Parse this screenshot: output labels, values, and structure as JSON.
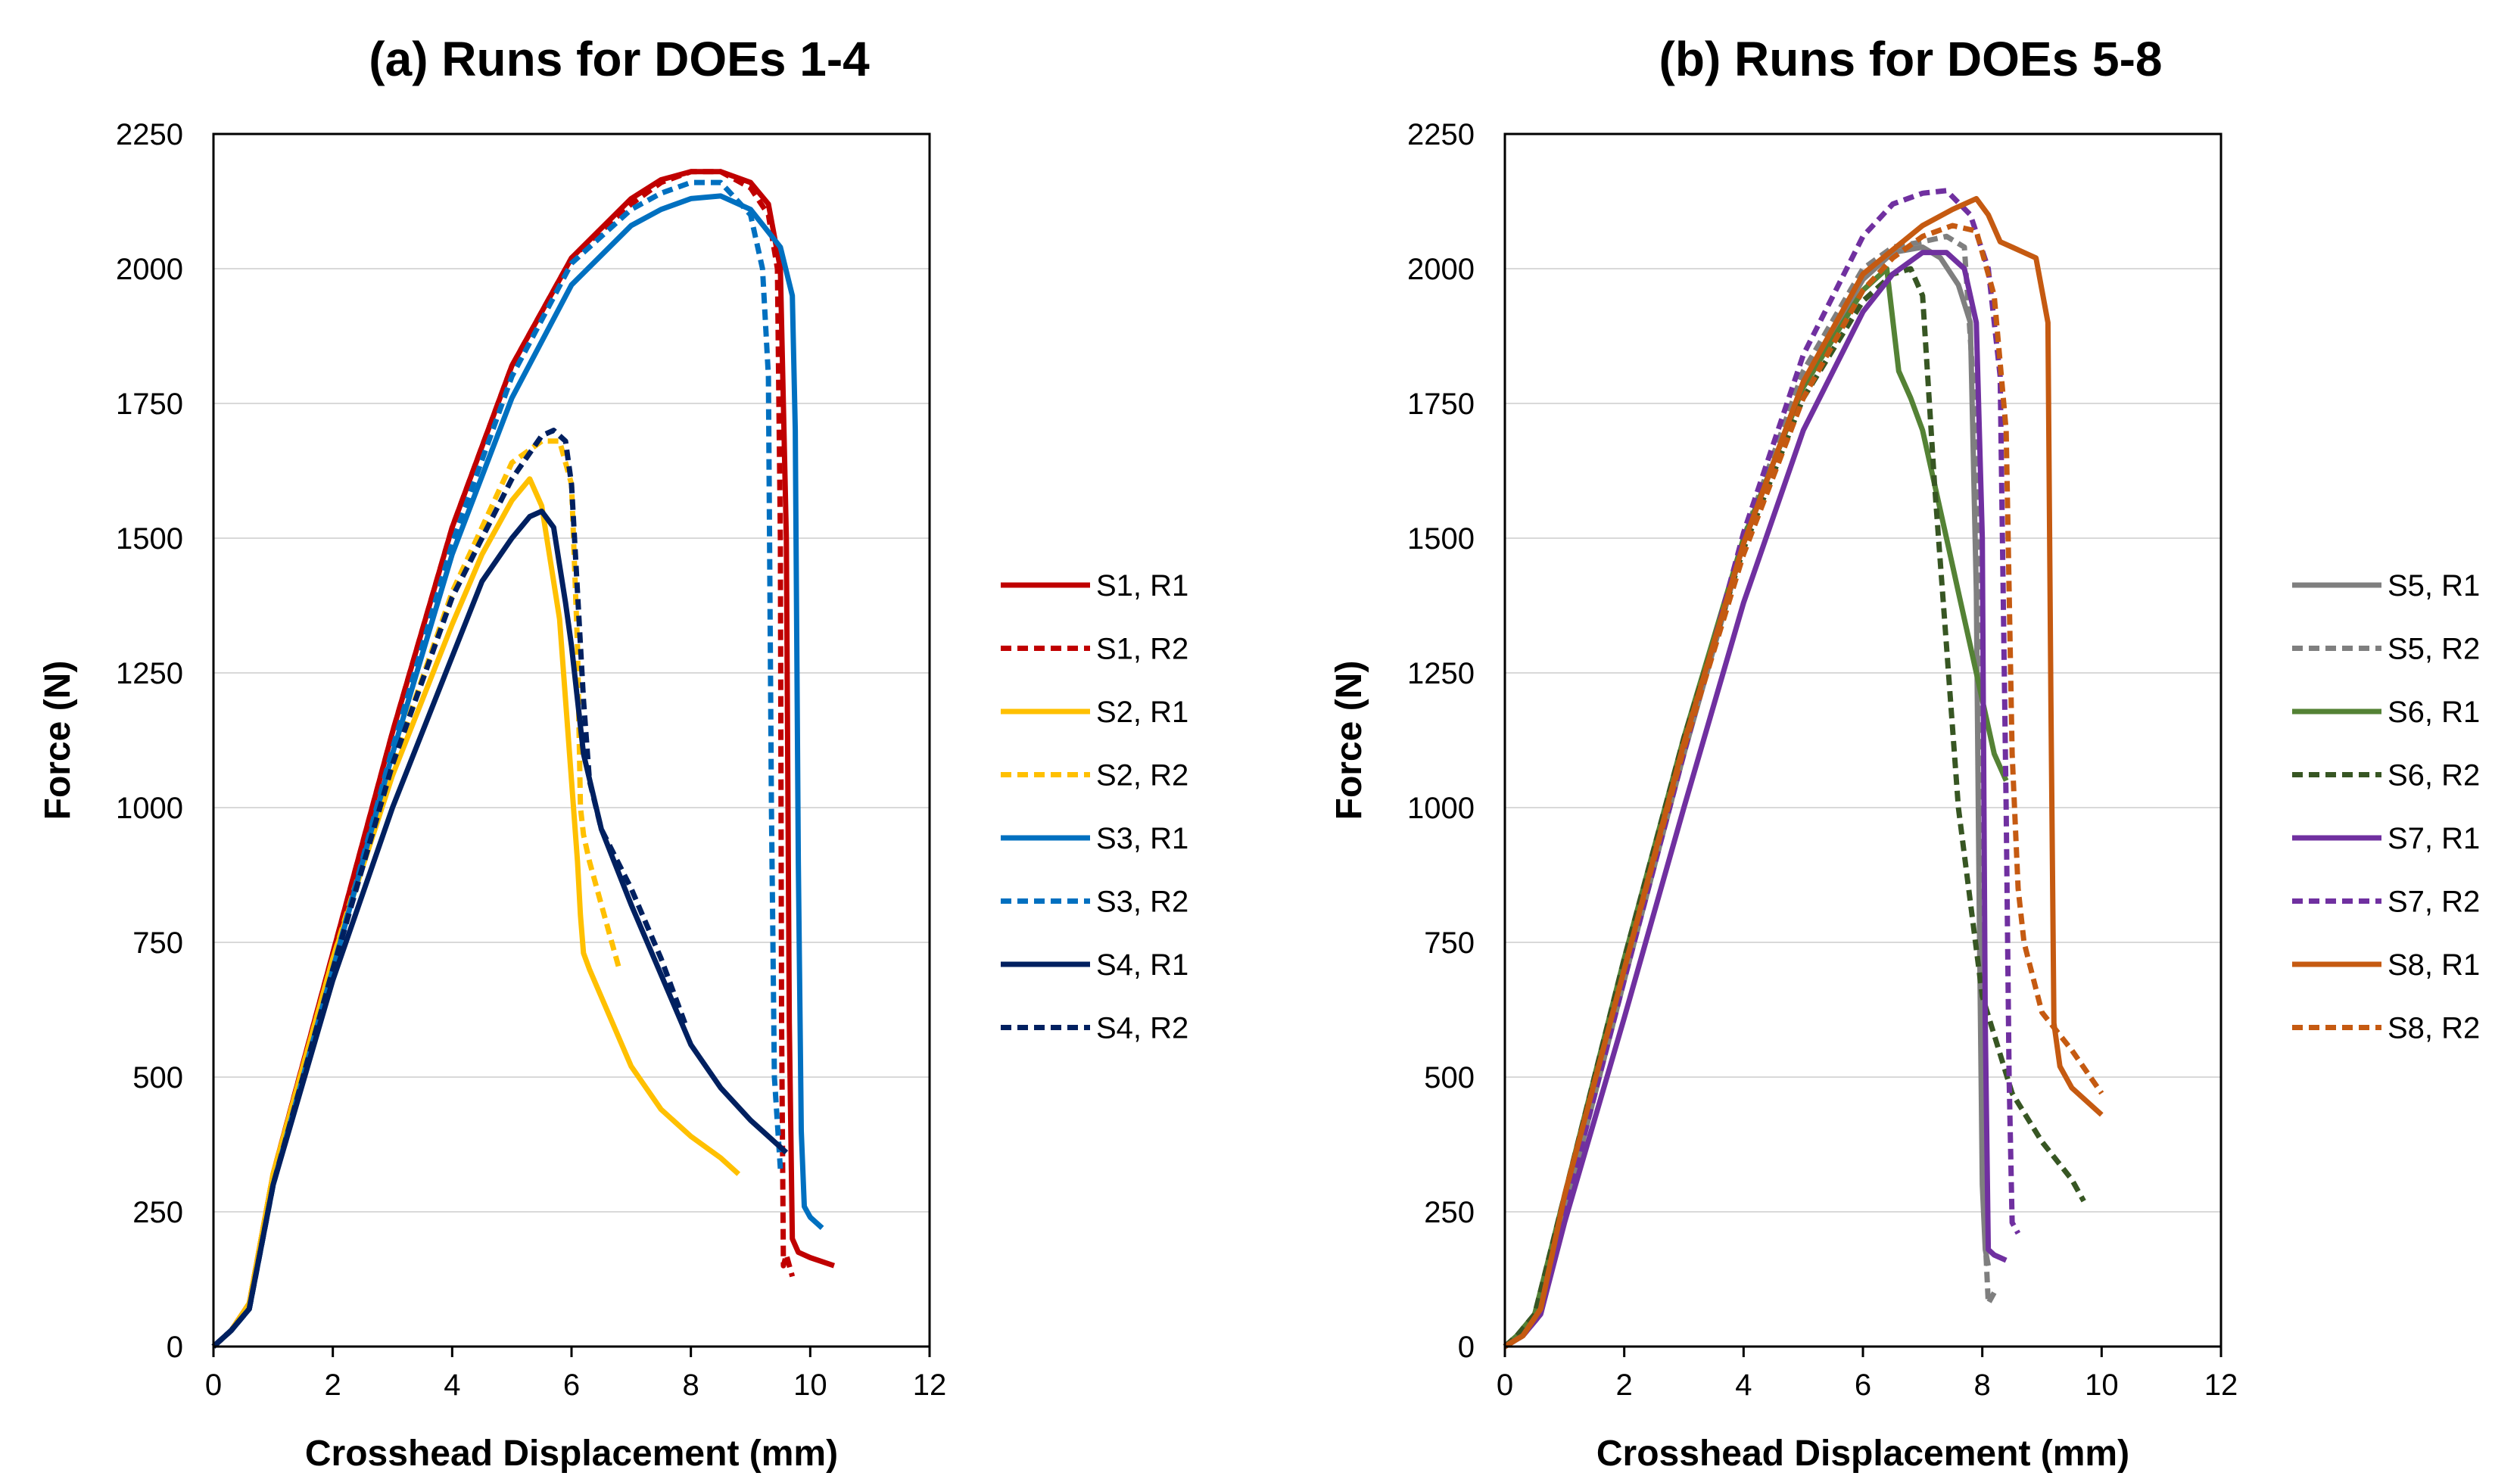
{
  "chart_data": [
    {
      "type": "line",
      "title": "(a) Runs for DOEs 1-4",
      "xlabel": "Crosshead Displacement (mm)",
      "ylabel": "Force (N)",
      "xlim": [
        0,
        12
      ],
      "ylim": [
        0,
        2250
      ],
      "xticks": [
        0,
        2,
        4,
        6,
        8,
        10,
        12
      ],
      "yticks": [
        0,
        250,
        500,
        750,
        1000,
        1250,
        1500,
        1750,
        2000,
        2250
      ],
      "grid": "horizontal",
      "legend_position": "right",
      "series": [
        {
          "name": "S1, R1",
          "color": "#c00000",
          "dash": "solid",
          "x": [
            0,
            0.3,
            0.6,
            1,
            2,
            3,
            4,
            5,
            6,
            7,
            7.5,
            8,
            8.5,
            9,
            9.3,
            9.5,
            9.6,
            9.65,
            9.7,
            9.8,
            10,
            10.4
          ],
          "y": [
            0,
            30,
            80,
            320,
            730,
            1140,
            1520,
            1820,
            2020,
            2130,
            2165,
            2180,
            2180,
            2160,
            2120,
            2000,
            1500,
            600,
            200,
            175,
            165,
            150
          ]
        },
        {
          "name": "S1, R2",
          "color": "#c00000",
          "dash": "dashed",
          "x": [
            0,
            0.3,
            0.6,
            1,
            2,
            3,
            4,
            5,
            6,
            7,
            7.5,
            8,
            8.5,
            9,
            9.3,
            9.45,
            9.5,
            9.52,
            9.55,
            9.6,
            9.7
          ],
          "y": [
            0,
            30,
            80,
            320,
            730,
            1140,
            1520,
            1820,
            2020,
            2120,
            2160,
            2180,
            2180,
            2150,
            2100,
            2000,
            1500,
            600,
            150,
            170,
            130
          ]
        },
        {
          "name": "S2, R1",
          "color": "#ffc000",
          "dash": "solid",
          "x": [
            0,
            0.3,
            0.6,
            1,
            2,
            3,
            4,
            4.5,
            5,
            5.3,
            5.5,
            5.8,
            6,
            6.1,
            6.15,
            6.2,
            6.3,
            7,
            7.5,
            8,
            8.5,
            8.8
          ],
          "y": [
            0,
            30,
            80,
            320,
            720,
            1060,
            1340,
            1470,
            1570,
            1610,
            1560,
            1350,
            1050,
            900,
            800,
            730,
            700,
            520,
            440,
            390,
            350,
            320
          ]
        },
        {
          "name": "S2, R2",
          "color": "#ffc000",
          "dash": "dashed",
          "x": [
            0,
            0.3,
            0.6,
            1,
            2,
            3,
            4,
            5,
            5.5,
            5.8,
            6,
            6.1,
            6.15,
            6.2,
            6.3,
            6.5,
            6.8
          ],
          "y": [
            0,
            30,
            80,
            320,
            720,
            1080,
            1400,
            1640,
            1680,
            1680,
            1600,
            1300,
            1000,
            950,
            900,
            820,
            700
          ]
        },
        {
          "name": "S3, R1",
          "color": "#0070c0",
          "dash": "solid",
          "x": [
            0,
            0.3,
            0.6,
            1,
            2,
            3,
            4,
            5,
            6,
            7,
            7.5,
            8,
            8.5,
            9,
            9.5,
            9.7,
            9.75,
            9.8,
            9.85,
            9.9,
            10,
            10.2
          ],
          "y": [
            0,
            30,
            70,
            300,
            700,
            1100,
            1470,
            1760,
            1970,
            2080,
            2110,
            2130,
            2135,
            2110,
            2040,
            1950,
            1700,
            900,
            400,
            260,
            240,
            220
          ]
        },
        {
          "name": "S3, R2",
          "color": "#0070c0",
          "dash": "dashed",
          "x": [
            0,
            0.3,
            0.6,
            1,
            2,
            3,
            4,
            5,
            6,
            7,
            7.5,
            8,
            8.5,
            9,
            9.2,
            9.3,
            9.35,
            9.4,
            9.5
          ],
          "y": [
            0,
            30,
            70,
            300,
            700,
            1110,
            1490,
            1800,
            2010,
            2110,
            2140,
            2160,
            2160,
            2100,
            2000,
            1800,
            1000,
            500,
            330
          ]
        },
        {
          "name": "S4, R1",
          "color": "#002060",
          "dash": "solid",
          "x": [
            0,
            0.3,
            0.6,
            1,
            2,
            3,
            4,
            4.5,
            5,
            5.3,
            5.5,
            5.7,
            5.8,
            5.9,
            6,
            6.2,
            6.5,
            7,
            7.5,
            8,
            8.5,
            9,
            9.6
          ],
          "y": [
            0,
            30,
            70,
            300,
            680,
            1000,
            1280,
            1420,
            1500,
            1540,
            1550,
            1520,
            1450,
            1380,
            1300,
            1100,
            960,
            820,
            690,
            560,
            480,
            420,
            360
          ]
        },
        {
          "name": "S4, R2",
          "color": "#002060",
          "dash": "dashed",
          "x": [
            0,
            0.3,
            0.6,
            1,
            2,
            3,
            4,
            5,
            5.5,
            5.7,
            5.9,
            6,
            6.1,
            6.2,
            6.3,
            6.5,
            7,
            7.5,
            7.9
          ],
          "y": [
            0,
            30,
            70,
            300,
            700,
            1080,
            1390,
            1610,
            1690,
            1700,
            1680,
            1600,
            1400,
            1200,
            1050,
            960,
            850,
            720,
            600
          ]
        }
      ]
    },
    {
      "type": "line",
      "title": "(b) Runs for DOEs 5-8",
      "xlabel": "Crosshead Displacement (mm)",
      "ylabel": "Force (N)",
      "xlim": [
        0,
        12
      ],
      "ylim": [
        0,
        2250
      ],
      "xticks": [
        0,
        2,
        4,
        6,
        8,
        10,
        12
      ],
      "yticks": [
        0,
        250,
        500,
        750,
        1000,
        1250,
        1500,
        1750,
        2000,
        2250
      ],
      "grid": "horizontal",
      "legend_position": "right",
      "series": [
        {
          "name": "S5, R1",
          "color": "#7f7f7f",
          "dash": "solid",
          "x": [
            0,
            0.2,
            0.5,
            1,
            2,
            3,
            4,
            5,
            6,
            6.5,
            7,
            7.3,
            7.6,
            7.8,
            7.9,
            7.95,
            8,
            8.05,
            8.1
          ],
          "y": [
            0,
            20,
            60,
            250,
            680,
            1100,
            1490,
            1790,
            1980,
            2030,
            2040,
            2020,
            1970,
            1900,
            1400,
            800,
            300,
            180,
            150
          ]
        },
        {
          "name": "S5, R2",
          "color": "#7f7f7f",
          "dash": "dashed",
          "x": [
            0,
            0.2,
            0.5,
            1,
            2,
            3,
            4,
            5,
            6,
            6.5,
            7,
            7.4,
            7.7,
            7.9,
            8,
            8.05,
            8.1,
            8.2
          ],
          "y": [
            0,
            20,
            60,
            250,
            680,
            1100,
            1500,
            1810,
            2000,
            2040,
            2050,
            2060,
            2040,
            1700,
            600,
            200,
            80,
            100
          ]
        },
        {
          "name": "S6, R1",
          "color": "#548235",
          "dash": "solid",
          "x": [
            0,
            0.2,
            0.5,
            1,
            2,
            3,
            4,
            5,
            6,
            6.4,
            6.6,
            6.8,
            7,
            7.2,
            7.4,
            7.6,
            7.8,
            8,
            8.2,
            8.4
          ],
          "y": [
            0,
            20,
            60,
            280,
            720,
            1130,
            1500,
            1780,
            1960,
            2000,
            1810,
            1760,
            1700,
            1600,
            1500,
            1400,
            1300,
            1200,
            1100,
            1050
          ]
        },
        {
          "name": "S6, R2",
          "color": "#375623",
          "dash": "dashed",
          "x": [
            0,
            0.2,
            0.5,
            1,
            2,
            3,
            4,
            5,
            6,
            6.5,
            6.8,
            7,
            7.2,
            7.4,
            7.6,
            8,
            8.5,
            9,
            9.5,
            9.7
          ],
          "y": [
            0,
            20,
            60,
            280,
            720,
            1130,
            1480,
            1760,
            1940,
            1990,
            2000,
            1950,
            1600,
            1300,
            1000,
            650,
            470,
            380,
            310,
            270
          ]
        },
        {
          "name": "S7, R1",
          "color": "#7030a0",
          "dash": "solid",
          "x": [
            0,
            0.3,
            0.6,
            1,
            2,
            3,
            4,
            5,
            6,
            6.5,
            7,
            7.4,
            7.7,
            7.9,
            8,
            8.05,
            8.1,
            8.2,
            8.4
          ],
          "y": [
            0,
            20,
            60,
            230,
            610,
            1000,
            1380,
            1700,
            1920,
            1990,
            2030,
            2030,
            2000,
            1900,
            1500,
            600,
            180,
            170,
            160
          ]
        },
        {
          "name": "S7, R2",
          "color": "#7030a0",
          "dash": "dashed",
          "x": [
            0,
            0.3,
            0.6,
            1,
            2,
            3,
            4,
            5,
            6,
            6.5,
            7,
            7.4,
            7.8,
            8.1,
            8.3,
            8.4,
            8.45,
            8.5,
            8.6
          ],
          "y": [
            0,
            20,
            60,
            250,
            680,
            1100,
            1510,
            1840,
            2060,
            2120,
            2140,
            2145,
            2100,
            2000,
            1800,
            1000,
            500,
            230,
            210
          ]
        },
        {
          "name": "S8, R1",
          "color": "#c55a11",
          "dash": "solid",
          "x": [
            0,
            0.3,
            0.6,
            1,
            2,
            3,
            4,
            5,
            6,
            7,
            7.5,
            7.9,
            8.1,
            8.3,
            8.5,
            8.9,
            9.1,
            9.15,
            9.2,
            9.3,
            9.5,
            10
          ],
          "y": [
            0,
            20,
            70,
            280,
            700,
            1120,
            1490,
            1790,
            1990,
            2080,
            2110,
            2130,
            2100,
            2050,
            2040,
            2020,
            1900,
            1200,
            600,
            520,
            480,
            430
          ]
        },
        {
          "name": "S8, R2",
          "color": "#c55a11",
          "dash": "dashed",
          "x": [
            0,
            0.3,
            0.6,
            1,
            2,
            3,
            4,
            5,
            6,
            6.5,
            7,
            7.5,
            7.9,
            8.2,
            8.4,
            8.5,
            8.6,
            8.7,
            9,
            9.5,
            10
          ],
          "y": [
            0,
            20,
            70,
            280,
            700,
            1110,
            1470,
            1760,
            1960,
            2020,
            2060,
            2080,
            2070,
            1950,
            1700,
            1100,
            850,
            750,
            620,
            550,
            470
          ]
        }
      ]
    }
  ]
}
